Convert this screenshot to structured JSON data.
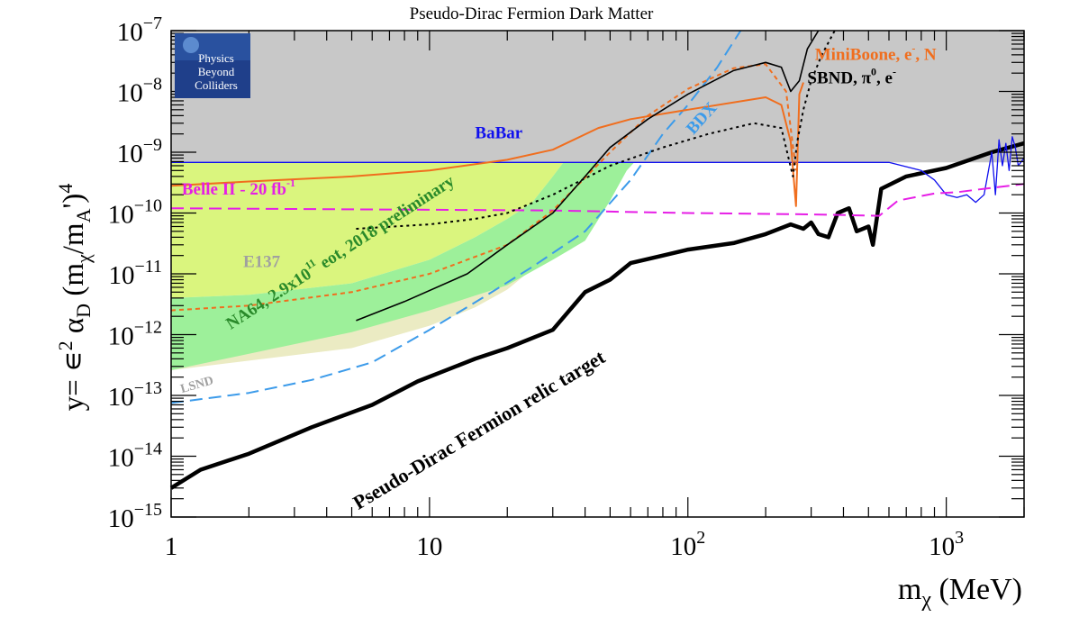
{
  "chart_data": {
    "type": "line",
    "title": "Pseudo-Dirac Fermion Dark Matter",
    "xlabel": "m_χ (MeV)",
    "ylabel": "y= ε² α_D (m_χ/m_A')⁴",
    "xscale": "log",
    "yscale": "log",
    "xlim": [
      1,
      2000
    ],
    "ylim": [
      1e-15,
      1e-07
    ],
    "xtick_labels": [
      {
        "v": 1,
        "base": "1",
        "exp": ""
      },
      {
        "v": 10,
        "base": "10",
        "exp": ""
      },
      {
        "v": 100,
        "base": "10",
        "exp": "2"
      },
      {
        "v": 1000,
        "base": "10",
        "exp": "3"
      }
    ],
    "ytick_labels": [
      {
        "v": 1e-07,
        "base": "10",
        "exp": "−7"
      },
      {
        "v": 1e-08,
        "base": "10",
        "exp": "−8"
      },
      {
        "v": 1e-09,
        "base": "10",
        "exp": "−9"
      },
      {
        "v": 1e-10,
        "base": "10",
        "exp": "−10"
      },
      {
        "v": 1e-11,
        "base": "10",
        "exp": "−11"
      },
      {
        "v": 1e-12,
        "base": "10",
        "exp": "−12"
      },
      {
        "v": 1e-13,
        "base": "10",
        "exp": "−13"
      },
      {
        "v": 1e-14,
        "base": "10",
        "exp": "−14"
      },
      {
        "v": 1e-15,
        "base": "10",
        "exp": "−15"
      }
    ],
    "logo_lines": [
      "Physics",
      "Beyond",
      "Colliders"
    ],
    "regions": [
      {
        "name": "excluded-region",
        "color": "#c8c8c8",
        "x": [
          1,
          35,
          41,
          48,
          55,
          70,
          100,
          150,
          200,
          240,
          255,
          262,
          270,
          400,
          600,
          900,
          1200,
          1500,
          1600,
          1700,
          1800,
          2000,
          2000,
          1
        ],
        "y": [
          6.8e-10,
          6.8e-10,
          6.8e-10,
          6.8e-10,
          6.8e-10,
          6.8e-10,
          6.8e-10,
          6.8e-10,
          6.8e-10,
          6.8e-10,
          6.8e-10,
          6.8e-10,
          6.8e-10,
          6.8e-10,
          6.8e-10,
          6.8e-10,
          6.8e-10,
          6.8e-10,
          6.8e-10,
          6.8e-10,
          6.8e-10,
          6.8e-10,
          1e-07,
          1e-07
        ]
      },
      {
        "name": "lsnd-region",
        "color": "#ebebc3",
        "x": [
          1,
          5,
          10,
          15,
          20,
          25,
          30,
          33,
          35,
          33,
          30,
          25,
          20,
          15,
          10,
          5,
          2,
          1
        ],
        "y": [
          2.6e-13,
          6e-13,
          1.4e-12,
          2.8e-12,
          5.5e-12,
          1.2e-11,
          4e-11,
          2e-10,
          6.8e-10,
          6.8e-10,
          4e-10,
          1.4e-10,
          7e-11,
          3.5e-11,
          1.5e-11,
          5.5e-12,
          2.3e-12,
          1.5e-12
        ]
      },
      {
        "name": "e137-region",
        "color": "#daf57e",
        "x": [
          1,
          30,
          33,
          35,
          33,
          30,
          25,
          20,
          15,
          10,
          5,
          2,
          1
        ],
        "y": [
          6.8e-10,
          6.8e-10,
          6.8e-10,
          6.8e-10,
          6.8e-10,
          4e-10,
          1.5e-10,
          8e-11,
          4e-11,
          1.7e-11,
          7e-12,
          4.5e-12,
          4e-12
        ]
      },
      {
        "name": "na64-region",
        "color": "#9df09a",
        "x": [
          1,
          5,
          10,
          20,
          30,
          40,
          50,
          58,
          62,
          40,
          33,
          30,
          25,
          20,
          15,
          10,
          5,
          2,
          1
        ],
        "y": [
          2.6e-13,
          1.1e-12,
          2.5e-12,
          6.5e-12,
          1.7e-11,
          3.5e-11,
          1.6e-10,
          5e-10,
          6.8e-10,
          6.8e-10,
          6.8e-10,
          4e-10,
          1.5e-10,
          8e-11,
          4e-11,
          1.7e-11,
          7e-12,
          4.5e-12,
          4e-12
        ]
      }
    ],
    "series": [
      {
        "name": "relic-target",
        "color": "#000000",
        "width": 4.5,
        "dash": "",
        "x": [
          1,
          1.3,
          2,
          3.5,
          6,
          9,
          15,
          20,
          30,
          40,
          50,
          60,
          80,
          100,
          150,
          200,
          250,
          280,
          300,
          320,
          350,
          380,
          420,
          450,
          500,
          520,
          560,
          700,
          1000,
          1500,
          2000
        ],
        "y": [
          3e-15,
          6e-15,
          1.1e-14,
          3e-14,
          7e-14,
          1.7e-13,
          4e-13,
          6e-13,
          1.2e-12,
          5e-12,
          8e-12,
          1.5e-11,
          2e-11,
          2.5e-11,
          3.2e-11,
          4.5e-11,
          6.5e-11,
          5.5e-11,
          7e-11,
          4.5e-11,
          4e-11,
          1e-10,
          1.2e-10,
          5e-11,
          6e-11,
          3e-11,
          2.5e-10,
          4e-10,
          5.5e-10,
          1e-09,
          1.4e-09
        ]
      },
      {
        "name": "babar-line",
        "color": "#1010ee",
        "width": 1.3,
        "dash": "",
        "x": [
          1,
          100,
          300,
          600,
          800,
          900,
          1000,
          1100,
          1200,
          1300,
          1400,
          1500,
          1550,
          1600,
          1650,
          1700,
          1750,
          1800,
          1850,
          1900,
          2000
        ],
        "y": [
          6.8e-10,
          6.8e-10,
          6.8e-10,
          6.8e-10,
          5e-10,
          3.5e-10,
          2e-10,
          1.8e-10,
          2e-10,
          1.5e-10,
          2e-10,
          1e-09,
          2e-10,
          1.6e-09,
          6e-10,
          1.4e-09,
          5e-10,
          1.8e-09,
          1.2e-09,
          6e-10,
          8e-10
        ]
      },
      {
        "name": "belle2-line",
        "color": "#e61ee6",
        "width": 2,
        "dash": "14,7",
        "x": [
          1,
          30,
          100,
          300,
          550,
          650,
          900,
          1100,
          1400,
          2000
        ],
        "y": [
          1.2e-10,
          1.1e-10,
          1e-10,
          9.5e-11,
          9e-11,
          1.6e-10,
          2.1e-10,
          2.2e-10,
          2.5e-10,
          3e-10
        ]
      },
      {
        "name": "bdx-line",
        "color": "#3c9bea",
        "width": 2,
        "dash": "14,7",
        "x": [
          1,
          2,
          3.5,
          6,
          10,
          16,
          25,
          40,
          60,
          80,
          100,
          130,
          160
        ],
        "y": [
          7.5e-14,
          1.1e-13,
          1.8e-13,
          3.5e-13,
          1.2e-12,
          4e-12,
          1.3e-11,
          5e-11,
          3.5e-10,
          2e-09,
          6e-09,
          2.5e-08,
          1e-07
        ]
      },
      {
        "name": "miniboone-line",
        "color": "#f06e1e",
        "width": 2,
        "dash": "",
        "x": [
          1,
          2,
          5,
          10,
          20,
          30,
          45,
          60,
          100,
          200,
          230,
          250,
          262,
          270,
          280
        ],
        "y": [
          2.8e-10,
          3.3e-10,
          4e-10,
          5e-10,
          7.5e-10,
          1.1e-09,
          2.5e-09,
          3.5e-09,
          5e-09,
          8e-09,
          6e-09,
          1.5e-09,
          1.3e-10,
          9e-09,
          1.4e-08
        ]
      },
      {
        "name": "miniboone-dotted",
        "color": "#f06e1e",
        "width": 2,
        "dash": "5,4",
        "x": [
          1,
          2,
          5,
          10,
          20,
          30,
          50,
          70,
          100,
          150,
          200,
          240,
          262
        ],
        "y": [
          2.5e-12,
          3e-12,
          5e-12,
          1e-11,
          3e-11,
          1.1e-10,
          1e-09,
          4e-09,
          1.1e-08,
          2.4e-08,
          2.8e-08,
          1e-08,
          5e-10
        ]
      },
      {
        "name": "black-solid",
        "color": "#000000",
        "width": 1.6,
        "dash": "",
        "x": [
          5.2,
          8,
          14,
          20,
          30,
          40,
          50,
          70,
          100,
          150,
          200,
          230,
          250,
          270,
          290,
          320
        ],
        "y": [
          1.7e-12,
          3.5e-12,
          1e-11,
          3e-11,
          1e-10,
          4e-10,
          1.2e-09,
          3.5e-09,
          9e-09,
          2.2e-08,
          3e-08,
          2.5e-08,
          1e-08,
          1.5e-08,
          5e-08,
          1e-07
        ]
      },
      {
        "name": "sbnd-line",
        "color": "#000000",
        "width": 2,
        "dash": "3,4",
        "x": [
          5.2,
          10,
          15,
          20,
          30,
          50,
          80,
          120,
          180,
          230,
          255,
          265,
          280,
          300,
          330,
          370
        ],
        "y": [
          5.5e-11,
          6.5e-11,
          8e-11,
          1e-10,
          2e-10,
          6e-10,
          1.2e-09,
          2e-09,
          3e-09,
          2.5e-09,
          4e-10,
          1.5e-09,
          5e-09,
          1.5e-08,
          4e-08,
          1e-07
        ]
      }
    ],
    "labels": [
      {
        "text": "BaBar",
        "color": "#1010ee",
        "x": 15,
        "y": 1.7e-09,
        "rot": 0,
        "size": 19,
        "bold": true
      },
      {
        "text": "Belle II - 20 fb",
        "sup": "-1",
        "color": "#e61ee6",
        "x": 1.1,
        "y": 2e-10,
        "rot": 0,
        "size": 19,
        "bold": true
      },
      {
        "text": "E137",
        "color": "#a0a0a0",
        "x": 1.9,
        "y": 1.3e-11,
        "rot": 0,
        "size": 19,
        "bold": true
      },
      {
        "text": "NA64, 2.9x10",
        "sup": "11",
        "tail": " eot, 2018 preliminary",
        "color": "#2a8a2a",
        "x": 1.7,
        "y": 1.2e-12,
        "rot": -33,
        "size": 19,
        "bold": true
      },
      {
        "text": "LSND",
        "color": "#a0a0a0",
        "x": 1.1,
        "y": 1.1e-13,
        "rot": -16,
        "size": 14,
        "bold": true
      },
      {
        "text": "BDX",
        "color": "#3c9bea",
        "x": 105,
        "y": 1.9e-09,
        "rot": -48,
        "size": 19,
        "bold": true
      },
      {
        "text": "MiniBoone, e",
        "sup": "-",
        "tail": ", N",
        "color": "#f06e1e",
        "x": 310,
        "y": 3.3e-08,
        "rot": 0,
        "size": 19,
        "bold": true
      },
      {
        "text": "SBND, π",
        "sup": "0",
        "tail": ", e",
        "sup2": "-",
        "color": "#000000",
        "x": 290,
        "y": 1.35e-08,
        "rot": 0,
        "size": 19,
        "bold": true
      },
      {
        "text": "Pseudo-Dirac Fermion relic target",
        "color": "#000000",
        "x": 5.3,
        "y": 1.3e-15,
        "rot": -31,
        "size": 22,
        "bold": true
      }
    ]
  }
}
